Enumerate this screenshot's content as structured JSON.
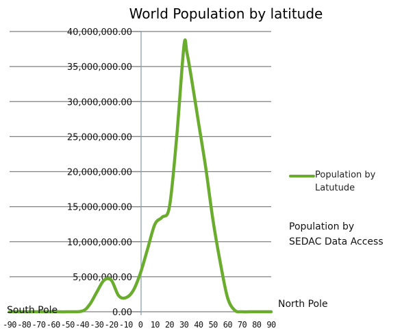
{
  "chart_data": {
    "type": "line",
    "title": "World Population by latitude",
    "x": [
      -90,
      -80,
      -70,
      -60,
      -50,
      -40,
      -35,
      -30,
      -25,
      -20,
      -15,
      -10,
      -5,
      0,
      5,
      10,
      15,
      20,
      25,
      30,
      32,
      35,
      40,
      45,
      50,
      55,
      60,
      65,
      70,
      75,
      80,
      85,
      90
    ],
    "x_ticks": [
      "-90",
      "-80",
      "-70",
      "-60",
      "-50",
      "-40",
      "-30",
      "-20",
      "-10",
      "0",
      "10",
      "20",
      "30",
      "40",
      "50",
      "60",
      "70",
      "80",
      "90"
    ],
    "y_ticks": [
      "0.00",
      "5,000,000.00",
      "10,000,000.00",
      "15,000,000.00",
      "20,000,000.00",
      "25,000,000.00",
      "30,000,000.00",
      "35,000,000.00",
      "40,000,000.00"
    ],
    "ylim": [
      0,
      40000000
    ],
    "xlim": [
      -90,
      90
    ],
    "grid": true,
    "legend_position": "right",
    "series": [
      {
        "name": "Population by Latutude",
        "color": "#6aac2e",
        "values": [
          0,
          0,
          0,
          0,
          0,
          100000,
          1000000,
          2800000,
          4500000,
          4500000,
          2300000,
          2000000,
          3000000,
          5500000,
          9000000,
          12500000,
          13500000,
          15000000,
          25000000,
          38000000,
          37000000,
          33500000,
          27000000,
          20500000,
          13000000,
          7000000,
          2000000,
          200000,
          0,
          0,
          0,
          0,
          0
        ]
      }
    ],
    "annotations": {
      "source_line1": "Population by",
      "source_line2": "SEDAC Data Access",
      "south_label": "South Pole",
      "north_label": "North Pole"
    }
  }
}
